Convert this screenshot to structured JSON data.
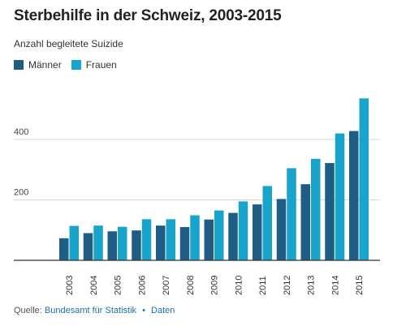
{
  "colors": {
    "maenner": "#1f5d84",
    "frauen": "#19a4cc",
    "grid": "#d8d8d8",
    "axis": "#333333"
  },
  "title": "Sterbehilfe in der Schweiz, 2003-2015",
  "subtitle": "Anzahl begleitete Suizide",
  "legend": {
    "maenner": "Männer",
    "frauen": "Frauen"
  },
  "footer": {
    "prefix": "Quelle:",
    "source": "Bundesamt für Statistik",
    "separator": "•",
    "link": "Daten"
  },
  "chart_data": {
    "type": "bar",
    "categories": [
      "2003",
      "2004",
      "2005",
      "2006",
      "2007",
      "2008",
      "2009",
      "2010",
      "2011",
      "2012",
      "2013",
      "2014",
      "2015"
    ],
    "series": [
      {
        "name": "Männer",
        "values": [
          73,
          90,
          96,
          99,
          115,
          110,
          135,
          157,
          185,
          203,
          252,
          322,
          428
        ]
      },
      {
        "name": "Frauen",
        "values": [
          114,
          115,
          111,
          136,
          136,
          149,
          165,
          195,
          246,
          305,
          336,
          420,
          536
        ]
      }
    ],
    "yticks": [
      200,
      400
    ],
    "ylim": [
      0,
      600
    ],
    "grid": true,
    "legend_position": "top-left"
  }
}
